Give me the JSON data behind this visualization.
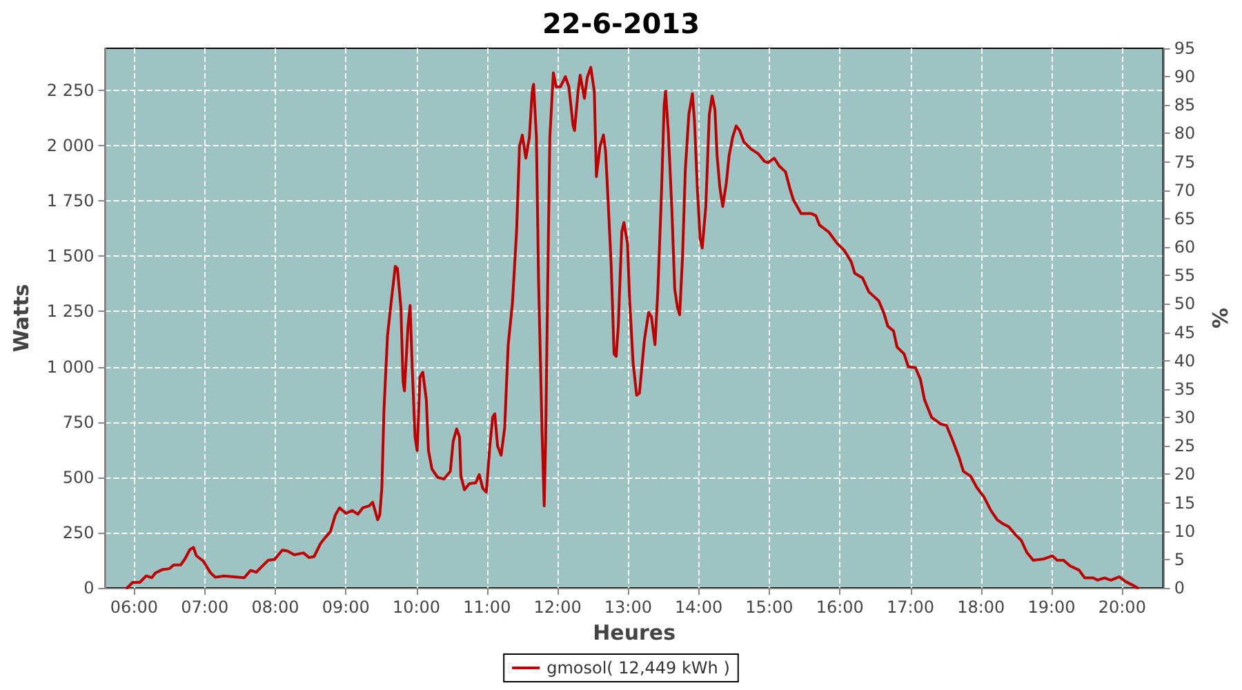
{
  "chart_data": {
    "type": "line",
    "title": "22-6-2013",
    "xlabel": "Heures",
    "ylabel": "Watts",
    "y2label": "%",
    "legend": "bottom",
    "grid": true,
    "marker": "none",
    "line_style": "solid",
    "xlim": [
      5.59,
      20.58
    ],
    "xticks": [
      {
        "value": 6,
        "label": "06:00"
      },
      {
        "value": 7,
        "label": "07:00"
      },
      {
        "value": 8,
        "label": "08:00"
      },
      {
        "value": 9,
        "label": "09:00"
      },
      {
        "value": 10,
        "label": "10:00"
      },
      {
        "value": 11,
        "label": "11:00"
      },
      {
        "value": 12,
        "label": "12:00"
      },
      {
        "value": 13,
        "label": "13:00"
      },
      {
        "value": 14,
        "label": "14:00"
      },
      {
        "value": 15,
        "label": "15:00"
      },
      {
        "value": 16,
        "label": "16:00"
      },
      {
        "value": 17,
        "label": "17:00"
      },
      {
        "value": 18,
        "label": "18:00"
      },
      {
        "value": 19,
        "label": "19:00"
      },
      {
        "value": 20,
        "label": "20:00"
      }
    ],
    "ylim": [
      0,
      2440
    ],
    "yticks": [
      0,
      250,
      500,
      750,
      {
        "value": 1000,
        "label": "1 000"
      },
      {
        "value": 1250,
        "label": "1 250"
      },
      {
        "value": 1500,
        "label": "1 500"
      },
      {
        "value": 1750,
        "label": "1 750"
      },
      {
        "value": 2000,
        "label": "2 000"
      },
      {
        "value": 2250,
        "label": "2 250"
      }
    ],
    "y2lim": [
      0,
      95
    ],
    "y2ticks": [
      0,
      5,
      10,
      15,
      20,
      25,
      30,
      35,
      40,
      45,
      50,
      55,
      60,
      65,
      70,
      75,
      80,
      85,
      90,
      95
    ],
    "series": [
      {
        "name": "gmosol( 12,449 kWh )",
        "color": "#c00000",
        "x": [
          5.9,
          5.98,
          6.08,
          6.17,
          6.25,
          6.3,
          6.4,
          6.5,
          6.56,
          6.66,
          6.72,
          6.79,
          6.84,
          6.88,
          6.98,
          7.08,
          7.15,
          7.27,
          7.56,
          7.65,
          7.73,
          7.9,
          7.99,
          8.1,
          8.17,
          8.27,
          8.4,
          8.48,
          8.55,
          8.64,
          8.7,
          8.78,
          8.85,
          8.91,
          9.0,
          9.09,
          9.17,
          9.24,
          9.33,
          9.38,
          9.45,
          9.48,
          9.51,
          9.54,
          9.59,
          9.64,
          9.7,
          9.73,
          9.78,
          9.81,
          9.83,
          9.88,
          9.91,
          9.94,
          9.98,
          10.01,
          10.05,
          10.09,
          10.14,
          10.17,
          10.22,
          10.3,
          10.39,
          10.48,
          10.52,
          10.57,
          10.61,
          10.63,
          10.68,
          10.75,
          10.84,
          10.89,
          10.94,
          10.99,
          11.04,
          11.08,
          11.11,
          11.15,
          11.2,
          11.25,
          11.3,
          11.36,
          11.42,
          11.46,
          11.5,
          11.55,
          11.6,
          11.64,
          11.66,
          11.7,
          11.73,
          11.78,
          11.81,
          11.83,
          11.86,
          11.89,
          11.94,
          11.98,
          12.04,
          12.11,
          12.16,
          12.22,
          12.24,
          12.29,
          12.32,
          12.38,
          12.42,
          12.47,
          12.52,
          12.55,
          12.6,
          12.65,
          12.68,
          12.71,
          12.76,
          12.8,
          12.83,
          12.86,
          12.91,
          12.94,
          12.99,
          13.02,
          13.07,
          13.12,
          13.16,
          13.23,
          13.29,
          13.33,
          13.38,
          13.42,
          13.47,
          13.51,
          13.53,
          13.57,
          13.62,
          13.66,
          13.7,
          13.73,
          13.77,
          13.81,
          13.86,
          13.91,
          13.94,
          13.98,
          14.02,
          14.05,
          14.1,
          14.15,
          14.19,
          14.23,
          14.26,
          14.3,
          14.34,
          14.39,
          14.43,
          14.48,
          14.53,
          14.58,
          14.64,
          14.74,
          14.84,
          14.93,
          14.98,
          15.07,
          15.14,
          15.23,
          15.29,
          15.34,
          15.45,
          15.59,
          15.66,
          15.71,
          15.84,
          15.96,
          16.06,
          16.16,
          16.21,
          16.32,
          16.41,
          16.55,
          16.62,
          16.68,
          16.76,
          16.81,
          16.91,
          16.97,
          17.07,
          17.14,
          17.2,
          17.3,
          17.43,
          17.51,
          17.59,
          17.69,
          17.75,
          17.85,
          17.94,
          18.04,
          18.14,
          18.23,
          18.3,
          18.39,
          18.49,
          18.57,
          18.65,
          18.74,
          18.88,
          19.01,
          19.08,
          19.17,
          19.26,
          19.39,
          19.47,
          19.59,
          19.65,
          19.75,
          19.84,
          19.96,
          20.04,
          20.15,
          20.22
        ],
        "values": [
          0,
          25,
          25,
          54,
          46,
          67,
          83,
          87,
          104,
          104,
          131,
          173,
          183,
          146,
          121,
          69,
          48,
          54,
          46,
          79,
          71,
          125,
          129,
          171,
          167,
          150,
          158,
          137,
          142,
          200,
          225,
          254,
          329,
          362,
          337,
          350,
          333,
          362,
          371,
          387,
          308,
          329,
          454,
          808,
          1141,
          1287,
          1454,
          1444,
          1266,
          933,
          891,
          1183,
          1277,
          996,
          683,
          621,
          954,
          975,
          850,
          621,
          537,
          500,
          492,
          527,
          662,
          719,
          683,
          506,
          444,
          471,
          475,
          512,
          450,
          433,
          641,
          771,
          787,
          641,
          600,
          725,
          1100,
          1287,
          1620,
          1995,
          2048,
          1943,
          2037,
          2246,
          2277,
          2037,
          1391,
          704,
          371,
          662,
          1370,
          2037,
          2329,
          2266,
          2266,
          2312,
          2266,
          2089,
          2068,
          2246,
          2318,
          2214,
          2308,
          2354,
          2246,
          1860,
          1995,
          2048,
          1974,
          1787,
          1454,
          1058,
          1047,
          1183,
          1610,
          1652,
          1558,
          1308,
          1017,
          871,
          881,
          1121,
          1246,
          1225,
          1100,
          1340,
          1766,
          2183,
          2246,
          2058,
          1704,
          1350,
          1266,
          1235,
          1496,
          1891,
          2141,
          2235,
          2110,
          1808,
          1579,
          1537,
          1725,
          2141,
          2225,
          2162,
          1954,
          1808,
          1725,
          1829,
          1954,
          2037,
          2089,
          2068,
          2016,
          1985,
          1964,
          1929,
          1923,
          1943,
          1908,
          1881,
          1808,
          1756,
          1693,
          1693,
          1683,
          1641,
          1610,
          1558,
          1527,
          1475,
          1423,
          1402,
          1339,
          1298,
          1246,
          1183,
          1162,
          1089,
          1058,
          1000,
          996,
          944,
          850,
          771,
          741,
          735,
          673,
          589,
          527,
          506,
          454,
          412,
          350,
          308,
          292,
          277,
          240,
          215,
          160,
          125,
          130,
          145,
          125,
          125,
          100,
          80,
          45,
          45,
          35,
          45,
          35,
          50,
          30,
          12,
          0
        ]
      }
    ]
  }
}
